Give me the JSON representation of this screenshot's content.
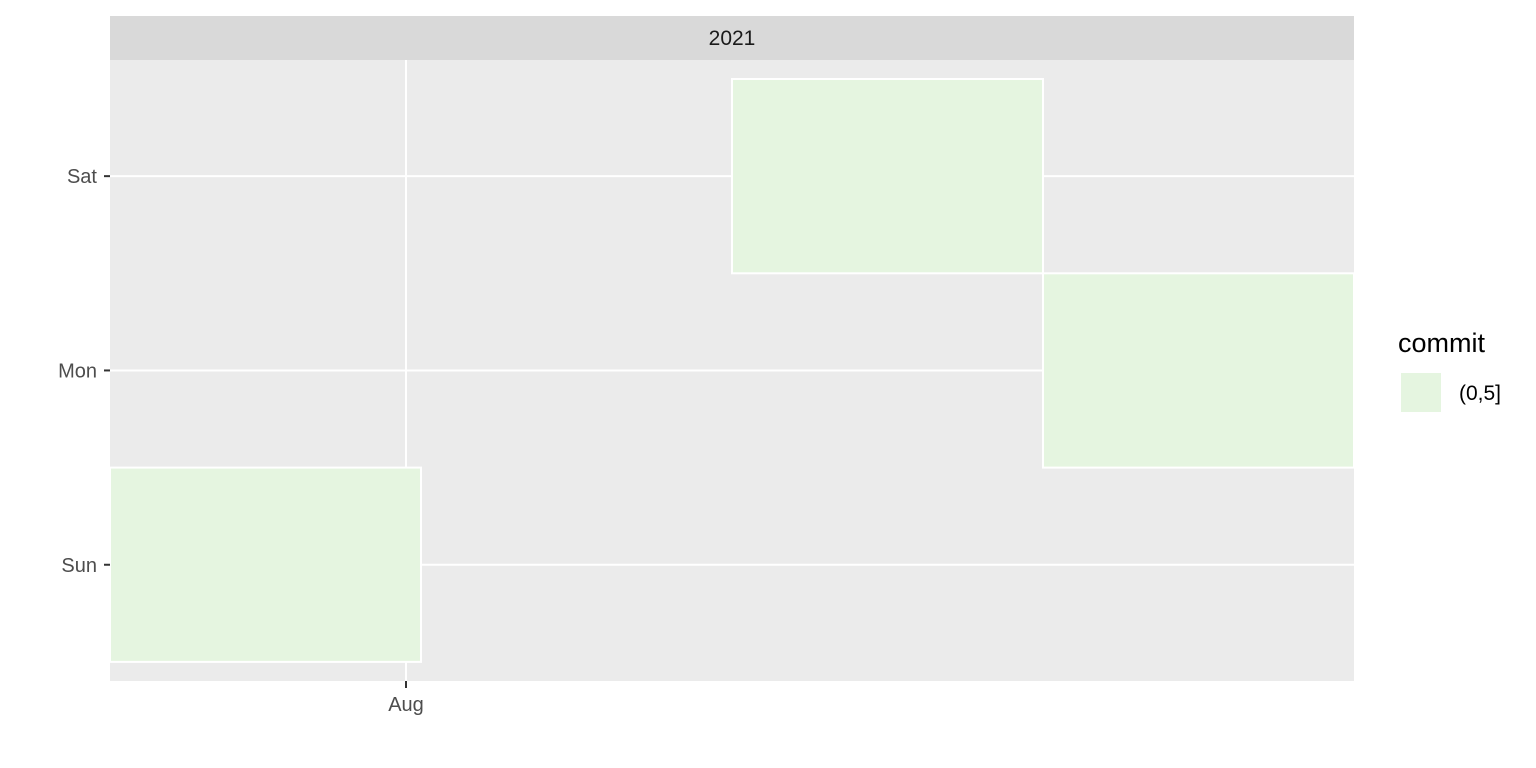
{
  "chart_data": {
    "type": "heatmap",
    "facet_label": "2021",
    "x_tick_labels": [
      "Aug"
    ],
    "y_categories": [
      "Sun",
      "Mon",
      "Sat"
    ],
    "tiles": [
      {
        "week": 1,
        "day": "Sun",
        "fill_bin": "(0,5]"
      },
      {
        "week": 3,
        "day": "Sat",
        "fill_bin": "(0,5]"
      },
      {
        "week": 4,
        "day": "Mon",
        "fill_bin": "(0,5]"
      }
    ],
    "legend": {
      "title": "commit",
      "entries": [
        {
          "label": "(0,5]",
          "color": "#e5f5e0"
        }
      ],
      "placement": "right"
    },
    "colors": {
      "panel_background": "#ebebeb",
      "grid": "#ffffff",
      "strip_background": "#d9d9d9",
      "tile_border": "#ffffff"
    },
    "grid": true
  }
}
